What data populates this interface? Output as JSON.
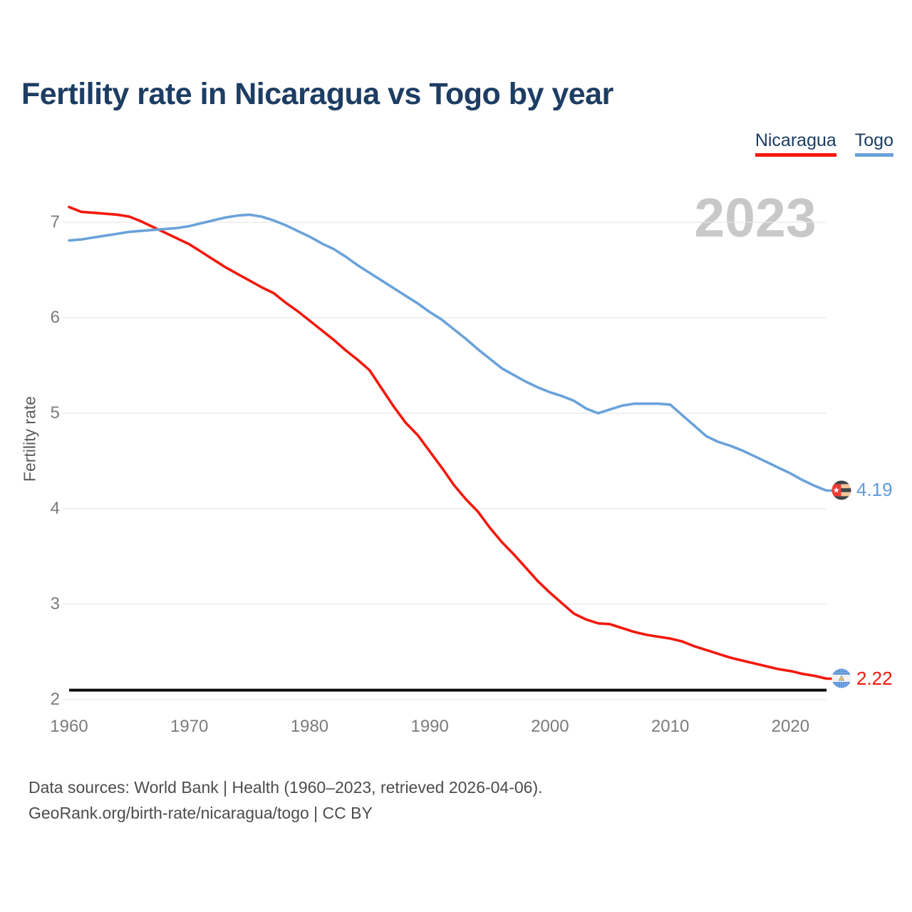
{
  "title": "Fertility rate in Nicaragua vs Togo by year",
  "legend": [
    {
      "label": "Nicaragua",
      "color": "#f3180c"
    },
    {
      "label": "Togo",
      "color": "#6aa2da"
    }
  ],
  "watermark": "2023",
  "y_axis": {
    "label": "Fertility rate",
    "ticks": [
      7,
      6,
      5,
      4,
      3,
      2
    ]
  },
  "x_axis": {
    "ticks": [
      1960,
      1970,
      1980,
      1990,
      2000,
      2010,
      2020
    ]
  },
  "annotations": {
    "replacement_level": 2.1
  },
  "end_labels": {
    "togo": {
      "value": "4.19",
      "color": "#5f9bdb",
      "flag": "togo-flag"
    },
    "nicaragua": {
      "value": "2.22",
      "color": "#f3180c",
      "flag": "nicaragua-flag"
    }
  },
  "footer": {
    "line1": "Data sources: World Bank | Health (1960–2023, retrieved 2026-04-06).",
    "line2": "GeoRank.org/birth-rate/nicaragua/togo | CC BY"
  },
  "chart_data": {
    "type": "line",
    "title": "Fertility rate in Nicaragua vs Togo by year",
    "xlabel": "",
    "ylabel": "Fertility rate",
    "xlim": [
      1960,
      2023
    ],
    "ylim": [
      2,
      7.3
    ],
    "grid": "horizontal",
    "legend_position": "top-right",
    "reference_line_y": 2.1,
    "x": [
      1960,
      1961,
      1962,
      1963,
      1964,
      1965,
      1966,
      1967,
      1968,
      1969,
      1970,
      1971,
      1972,
      1973,
      1974,
      1975,
      1976,
      1977,
      1978,
      1979,
      1980,
      1981,
      1982,
      1983,
      1984,
      1985,
      1986,
      1987,
      1988,
      1989,
      1990,
      1991,
      1992,
      1993,
      1994,
      1995,
      1996,
      1997,
      1998,
      1999,
      2000,
      2001,
      2002,
      2003,
      2004,
      2005,
      2006,
      2007,
      2008,
      2009,
      2010,
      2011,
      2012,
      2013,
      2014,
      2015,
      2016,
      2017,
      2018,
      2019,
      2020,
      2021,
      2022,
      2023
    ],
    "series": [
      {
        "name": "Nicaragua",
        "color": "#f3180c",
        "final_value": 2.22,
        "values": [
          7.16,
          7.11,
          7.1,
          7.09,
          7.08,
          7.06,
          7.01,
          6.95,
          6.89,
          6.83,
          6.77,
          6.69,
          6.61,
          6.53,
          6.46,
          6.39,
          6.32,
          6.26,
          6.16,
          6.07,
          5.97,
          5.87,
          5.77,
          5.66,
          5.56,
          5.45,
          5.26,
          5.07,
          4.9,
          4.77,
          4.6,
          4.43,
          4.25,
          4.1,
          3.97,
          3.8,
          3.65,
          3.52,
          3.38,
          3.24,
          3.12,
          3.01,
          2.9,
          2.84,
          2.8,
          2.79,
          2.75,
          2.71,
          2.68,
          2.66,
          2.64,
          2.61,
          2.56,
          2.52,
          2.48,
          2.44,
          2.41,
          2.38,
          2.35,
          2.32,
          2.3,
          2.27,
          2.25,
          2.22
        ]
      },
      {
        "name": "Togo",
        "color": "#6aa2da",
        "final_value": 4.19,
        "values": [
          6.81,
          6.82,
          6.84,
          6.86,
          6.88,
          6.9,
          6.91,
          6.92,
          6.93,
          6.94,
          6.96,
          6.99,
          7.02,
          7.05,
          7.07,
          7.08,
          7.06,
          7.02,
          6.97,
          6.91,
          6.85,
          6.78,
          6.72,
          6.64,
          6.55,
          6.47,
          6.39,
          6.31,
          6.23,
          6.15,
          6.06,
          5.98,
          5.88,
          5.78,
          5.67,
          5.57,
          5.47,
          5.4,
          5.33,
          5.27,
          5.22,
          5.18,
          5.13,
          5.05,
          5.0,
          5.04,
          5.08,
          5.1,
          5.1,
          5.1,
          5.09,
          4.98,
          4.87,
          4.76,
          4.7,
          4.66,
          4.61,
          4.55,
          4.49,
          4.43,
          4.37,
          4.3,
          4.24,
          4.19
        ]
      }
    ]
  }
}
